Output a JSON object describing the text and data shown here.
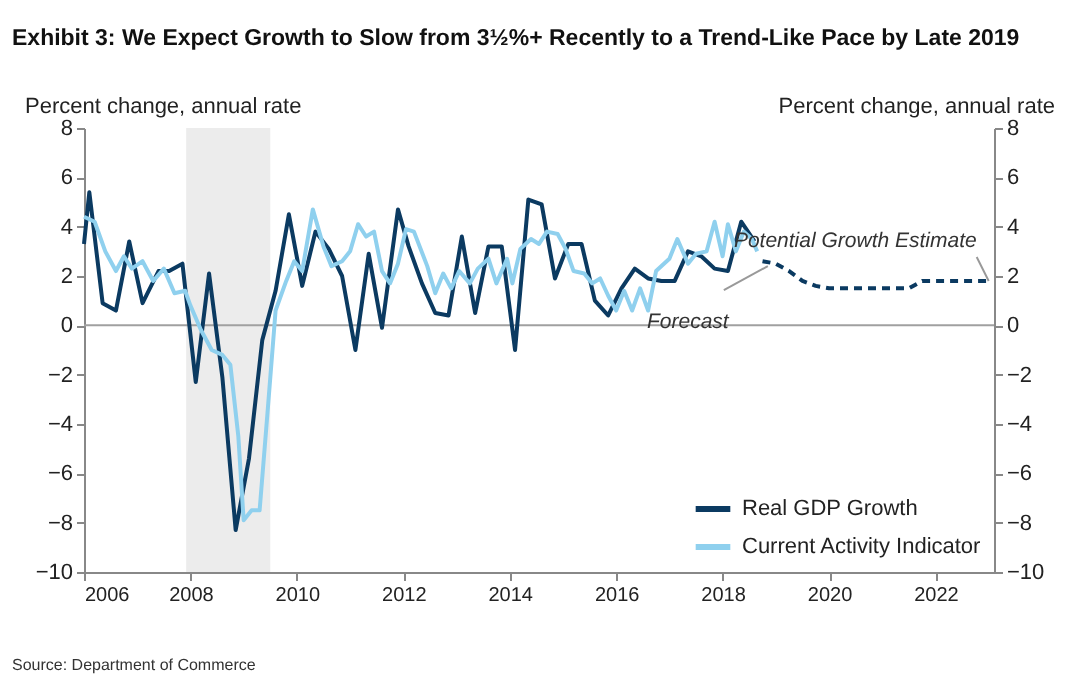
{
  "chart_data": {
    "type": "line",
    "title": "Exhibit 3: We Expect Growth to Slow from 3½%+ Recently to a Trend-Like Pace by Late 2019",
    "ylabel": "Percent change, annual rate",
    "y2label": "Percent change, annual rate",
    "xlim": [
      2006,
      2023.1
    ],
    "xticks": [
      2006,
      2008,
      2010,
      2012,
      2014,
      2016,
      2018,
      2020,
      2022
    ],
    "ylim": [
      -10,
      8
    ],
    "yticks": [
      -10,
      -8,
      -6,
      -4,
      -2,
      0,
      2,
      4,
      6,
      8
    ],
    "y2lim": [
      -10,
      8
    ],
    "y2ticks": [
      -10,
      -8,
      -6,
      -4,
      -2,
      0,
      2,
      4,
      6,
      8
    ],
    "grid": false,
    "legend": "bottom right",
    "marker": "none",
    "series": [
      {
        "name": "Real GDP Growth",
        "color": "#0b3a61",
        "line_style": "solid",
        "x": [
          2006.0,
          2006.1,
          2006.35,
          2006.6,
          2006.85,
          2007.1,
          2007.4,
          2007.6,
          2007.85,
          2008.1,
          2008.35,
          2008.6,
          2008.85,
          2009.1,
          2009.35,
          2009.6,
          2009.85,
          2010.1,
          2010.35,
          2010.6,
          2010.85,
          2011.1,
          2011.35,
          2011.6,
          2011.9,
          2012.1,
          2012.35,
          2012.6,
          2012.85,
          2013.1,
          2013.35,
          2013.6,
          2013.85,
          2014.1,
          2014.35,
          2014.6,
          2014.85,
          2015.1,
          2015.35,
          2015.6,
          2015.85,
          2016.1,
          2016.35,
          2016.6,
          2016.85,
          2017.1,
          2017.35,
          2017.6,
          2017.85,
          2018.1,
          2018.35,
          2018.6
        ],
        "values": [
          3.3,
          5.4,
          0.9,
          0.6,
          3.4,
          0.9,
          2.2,
          2.2,
          2.5,
          -2.3,
          2.1,
          -2.1,
          -8.3,
          -5.4,
          -0.6,
          1.4,
          4.5,
          1.6,
          3.8,
          3.1,
          2.0,
          -1.0,
          2.9,
          -0.1,
          4.7,
          3.2,
          1.7,
          0.5,
          0.4,
          3.6,
          0.5,
          3.2,
          3.2,
          -1.0,
          5.1,
          4.9,
          1.9,
          3.3,
          3.3,
          1.0,
          0.4,
          1.5,
          2.3,
          1.9,
          1.8,
          1.8,
          3.0,
          2.8,
          2.3,
          2.2,
          4.2,
          3.4
        ]
      },
      {
        "name": "Current Activity Indicator",
        "color": "#8fd0ee",
        "line_style": "solid",
        "x": [
          2006.0,
          2006.2,
          2006.4,
          2006.6,
          2006.75,
          2006.9,
          2007.1,
          2007.3,
          2007.5,
          2007.7,
          2007.9,
          2008.0,
          2008.2,
          2008.4,
          2008.6,
          2008.75,
          2008.9,
          2009.0,
          2009.15,
          2009.3,
          2009.45,
          2009.6,
          2009.8,
          2009.95,
          2010.1,
          2010.3,
          2010.5,
          2010.65,
          2010.85,
          2011.0,
          2011.15,
          2011.3,
          2011.45,
          2011.6,
          2011.75,
          2011.9,
          2012.05,
          2012.2,
          2012.45,
          2012.6,
          2012.75,
          2012.9,
          2013.05,
          2013.25,
          2013.4,
          2013.6,
          2013.75,
          2013.95,
          2014.05,
          2014.2,
          2014.4,
          2014.55,
          2014.7,
          2014.9,
          2015.05,
          2015.2,
          2015.4,
          2015.55,
          2015.7,
          2015.85,
          2016.0,
          2016.15,
          2016.3,
          2016.45,
          2016.6,
          2016.75,
          2017.0,
          2017.15,
          2017.35,
          2017.5,
          2017.7,
          2017.85,
          2018.0,
          2018.1,
          2018.25,
          2018.4,
          2018.55,
          2018.65
        ],
        "values": [
          4.4,
          4.2,
          3.0,
          2.2,
          2.8,
          2.3,
          2.6,
          1.8,
          2.3,
          1.3,
          1.4,
          0.8,
          -0.2,
          -1.0,
          -1.2,
          -1.6,
          -4.5,
          -7.9,
          -7.5,
          -7.5,
          -3.5,
          0.6,
          1.8,
          2.6,
          2.2,
          4.7,
          3.2,
          2.4,
          2.6,
          3.0,
          4.1,
          3.6,
          3.8,
          2.2,
          1.7,
          2.5,
          3.9,
          3.8,
          2.4,
          1.3,
          2.1,
          1.5,
          2.2,
          1.7,
          2.3,
          2.7,
          1.7,
          2.7,
          1.7,
          3.1,
          3.5,
          3.3,
          3.8,
          3.7,
          3.1,
          2.2,
          2.1,
          1.7,
          1.9,
          1.2,
          0.6,
          1.4,
          0.6,
          1.5,
          0.6,
          2.2,
          2.7,
          3.5,
          2.5,
          2.9,
          3.0,
          4.2,
          2.8,
          4.1,
          3.0,
          3.8,
          3.5,
          3.0
        ]
      },
      {
        "color": "#0b3a61",
        "line_style": "dashed",
        "x": [
          2018.75,
          2019.0,
          2019.25,
          2019.5,
          2019.75,
          2020.0,
          2020.5,
          2021.0,
          2021.5,
          2021.75,
          2022.0,
          2022.5,
          2023.0
        ],
        "values": [
          2.6,
          2.5,
          2.2,
          1.8,
          1.6,
          1.5,
          1.5,
          1.5,
          1.5,
          1.8,
          1.8,
          1.8,
          1.8
        ]
      }
    ],
    "bands": [
      {
        "axis": "x",
        "from": 2007.92,
        "to": 2009.5,
        "color": "#ececec"
      }
    ],
    "ref_lines": [
      {
        "axis": "y",
        "value": 0,
        "color": "#a0a0a0",
        "line_style": "solid"
      }
    ],
    "annotations": [
      {
        "text": "Forecast",
        "x": 2018.85,
        "y": 2.4
      },
      {
        "text": "Potential Growth Estimate",
        "x": 2023.0,
        "y": 1.8
      },
      "Source: Department of Commerce"
    ]
  }
}
